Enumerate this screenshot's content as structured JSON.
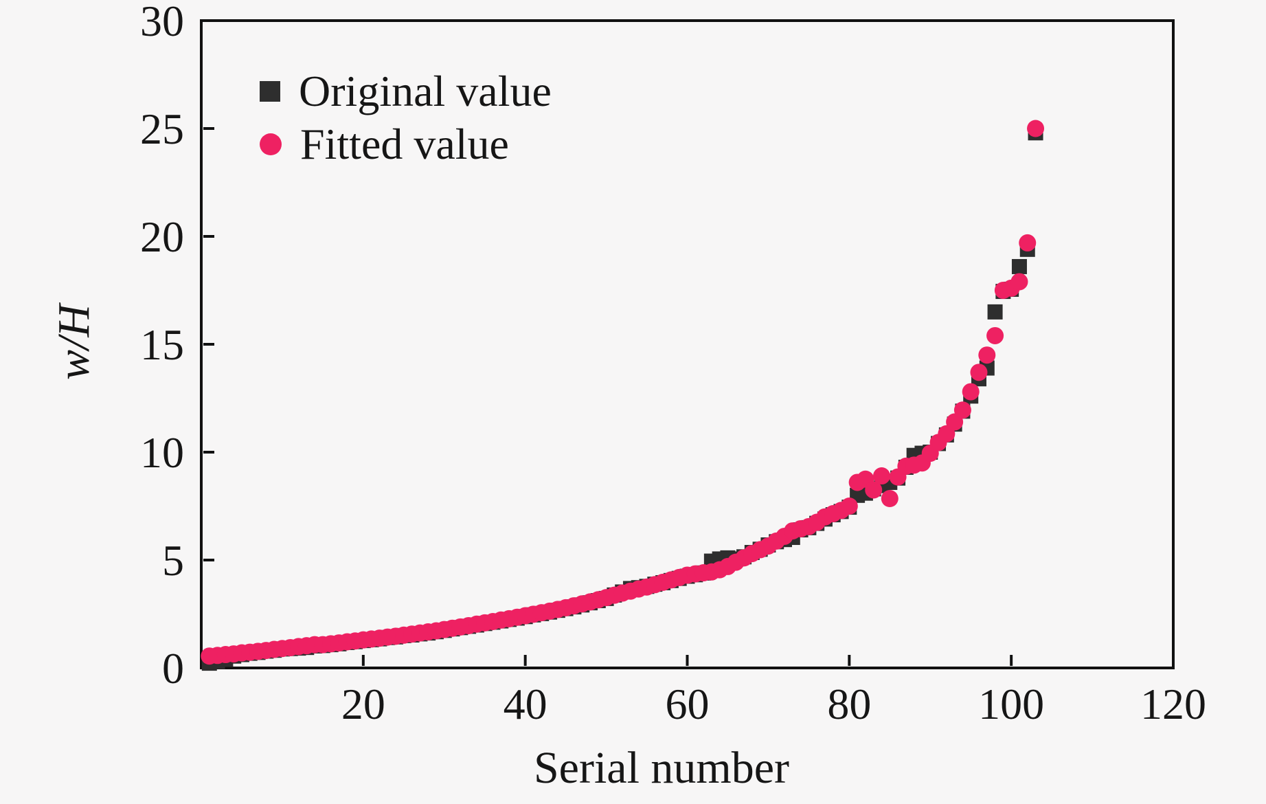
{
  "figure": {
    "background": "#f7f6f6",
    "xlabel": "Serial number",
    "ylabel": "w/H"
  },
  "axes": {
    "xlim": [
      0,
      120
    ],
    "ylim": [
      0,
      30
    ],
    "xticks": [
      20,
      40,
      60,
      80,
      100,
      120
    ],
    "yticks": [
      0,
      5,
      10,
      15,
      20,
      25,
      30
    ],
    "frame_color": "#111111",
    "grid": false
  },
  "legend": {
    "position": "top-left-inside",
    "items": [
      {
        "label": "Original value",
        "marker": "square-icon",
        "color": "#2e2e2e"
      },
      {
        "label": "Fitted value",
        "marker": "circle-icon",
        "color": "#ee2162"
      }
    ]
  },
  "chart_data": {
    "type": "scatter",
    "title": "",
    "xlabel": "Serial number",
    "ylabel": "w/H",
    "xlim": [
      0,
      120
    ],
    "ylim": [
      0,
      30
    ],
    "legend_position": "top-left inside",
    "grid": false,
    "x": [
      1,
      2,
      3,
      4,
      5,
      6,
      7,
      8,
      9,
      10,
      11,
      12,
      13,
      14,
      15,
      16,
      17,
      18,
      19,
      20,
      21,
      22,
      23,
      24,
      25,
      26,
      27,
      28,
      29,
      30,
      31,
      32,
      33,
      34,
      35,
      36,
      37,
      38,
      39,
      40,
      41,
      42,
      43,
      44,
      45,
      46,
      47,
      48,
      49,
      50,
      51,
      52,
      53,
      54,
      55,
      56,
      57,
      58,
      59,
      60,
      61,
      62,
      63,
      64,
      65,
      66,
      67,
      68,
      69,
      70,
      71,
      72,
      73,
      74,
      75,
      76,
      77,
      78,
      79,
      80,
      81,
      82,
      83,
      84,
      85,
      86,
      87,
      88,
      89,
      90,
      91,
      92,
      93,
      94,
      95,
      96,
      97,
      98,
      99,
      100,
      101,
      102,
      103
    ],
    "series": [
      {
        "name": "Original value",
        "marker": "square",
        "color": "#2e2e2e",
        "values": [
          0.22,
          0.3,
          0.4,
          0.55,
          0.62,
          0.68,
          0.72,
          0.78,
          0.82,
          0.88,
          0.9,
          0.92,
          0.95,
          1.02,
          1.04,
          1.08,
          1.12,
          1.18,
          1.22,
          1.27,
          1.31,
          1.35,
          1.41,
          1.44,
          1.5,
          1.53,
          1.58,
          1.62,
          1.68,
          1.74,
          1.81,
          1.87,
          1.93,
          1.99,
          2.06,
          2.12,
          2.18,
          2.25,
          2.31,
          2.38,
          2.46,
          2.52,
          2.59,
          2.67,
          2.75,
          2.83,
          2.92,
          3.02,
          3.12,
          3.22,
          3.38,
          3.52,
          3.68,
          3.72,
          3.78,
          3.88,
          3.95,
          4.05,
          4.15,
          4.25,
          4.32,
          4.4,
          4.95,
          5.05,
          5.1,
          5.05,
          5.15,
          5.35,
          5.5,
          5.7,
          5.85,
          5.95,
          6.05,
          6.4,
          6.5,
          6.7,
          6.9,
          7.1,
          7.25,
          7.45,
          8.0,
          8.1,
          8.3,
          8.45,
          8.6,
          8.8,
          9.3,
          9.85,
          9.95,
          10.0,
          10.4,
          10.8,
          11.3,
          11.9,
          12.6,
          13.4,
          13.9,
          16.5,
          17.45,
          17.55,
          18.6,
          19.4,
          24.8
        ]
      },
      {
        "name": "Fitted value",
        "marker": "circle",
        "color": "#ee2162",
        "values": [
          0.55,
          0.58,
          0.62,
          0.65,
          0.7,
          0.73,
          0.77,
          0.81,
          0.86,
          0.9,
          0.94,
          0.99,
          1.03,
          1.08,
          1.08,
          1.12,
          1.16,
          1.21,
          1.25,
          1.3,
          1.34,
          1.38,
          1.43,
          1.47,
          1.52,
          1.57,
          1.62,
          1.67,
          1.72,
          1.78,
          1.84,
          1.9,
          1.96,
          2.03,
          2.09,
          2.15,
          2.22,
          2.28,
          2.35,
          2.42,
          2.49,
          2.56,
          2.63,
          2.71,
          2.79,
          2.88,
          2.97,
          3.06,
          3.16,
          3.26,
          3.37,
          3.47,
          3.56,
          3.66,
          3.75,
          3.86,
          3.97,
          4.08,
          4.19,
          4.3,
          4.36,
          4.41,
          4.45,
          4.55,
          4.7,
          4.9,
          5.1,
          5.3,
          5.48,
          5.65,
          5.88,
          6.1,
          6.35,
          6.45,
          6.55,
          6.75,
          7.0,
          7.15,
          7.3,
          7.5,
          8.6,
          8.75,
          8.25,
          8.9,
          7.85,
          8.85,
          9.35,
          9.4,
          9.5,
          9.95,
          10.45,
          10.85,
          11.4,
          11.95,
          12.8,
          13.7,
          14.5,
          15.4,
          17.5,
          17.6,
          17.9,
          19.7,
          25.0
        ]
      }
    ]
  }
}
